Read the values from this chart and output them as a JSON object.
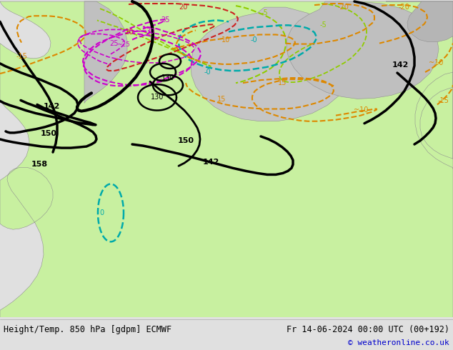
{
  "title_left": "Height/Temp. 850 hPa [gdpm] ECMWF",
  "title_right": "Fr 14-06-2024 00:00 UTC (00+192)",
  "copyright": "© weatheronline.co.uk",
  "ocean_color": "#d8d8d8",
  "land_green_color": "#c8f0a0",
  "land_gray_color": "#b8b8b8",
  "footer_bg": "#e0e0e0",
  "footer_text_color": "#000000",
  "copyright_color": "#0000cc"
}
